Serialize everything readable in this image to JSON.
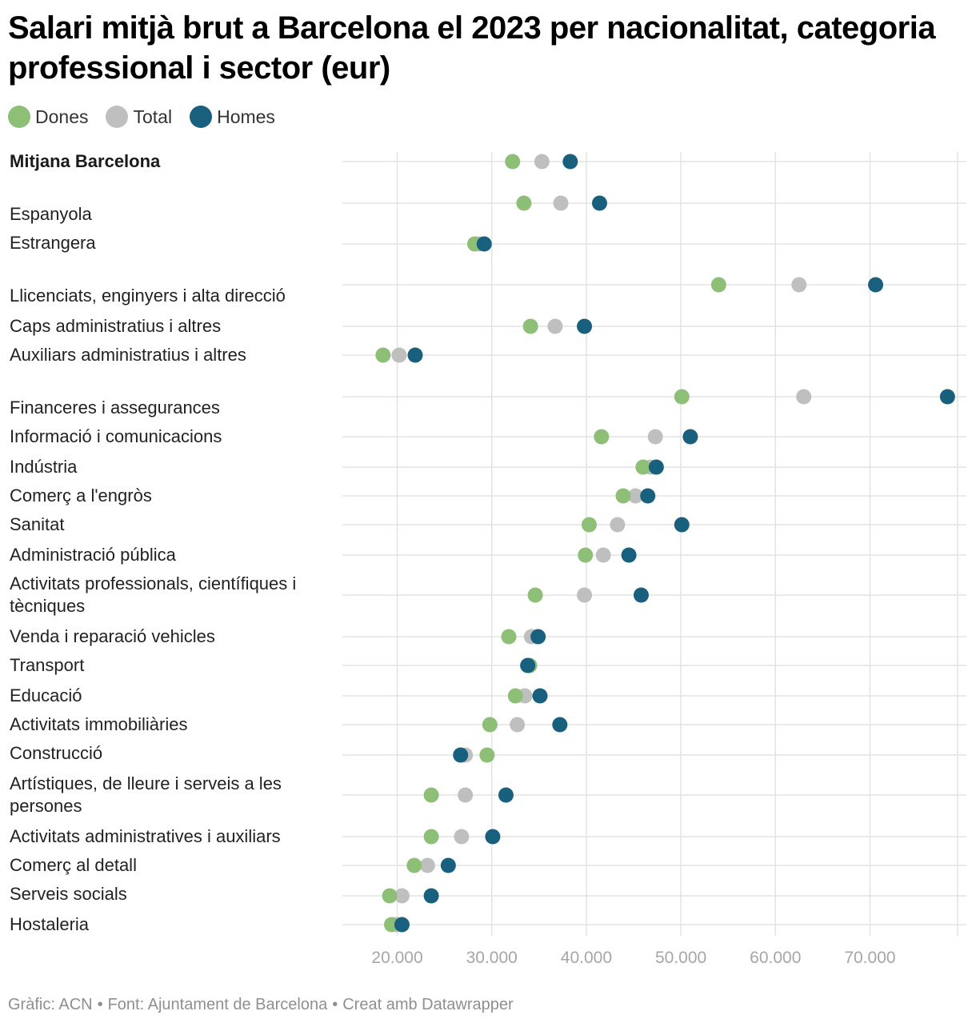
{
  "chart_data": {
    "type": "dot",
    "title": "Salari mitjà brut a Barcelona el 2023 per nacionalitat, categoria professional i sector (eur)",
    "series": [
      {
        "name": "Dones",
        "color": "#8dbf76"
      },
      {
        "name": "Total",
        "color": "#bfbfbf"
      },
      {
        "name": "Homes",
        "color": "#18607e"
      }
    ],
    "x_ticks": [
      20000,
      30000,
      40000,
      50000,
      60000,
      70000
    ],
    "x_tick_labels": [
      "20.000",
      "30.000",
      "40.000",
      "50.000",
      "60.000",
      "70.000"
    ],
    "xlim": [
      14200,
      80200
    ],
    "rows": [
      {
        "label": "Mitjana Barcelona",
        "bold": true,
        "dones": 32200,
        "total": 35300,
        "homes": 38300
      },
      {
        "label": "Espanyola",
        "dones": 33400,
        "total": 37300,
        "homes": 41400
      },
      {
        "label": "Estrangera",
        "dones": 28200,
        "total": 28700,
        "homes": 29200
      },
      {
        "label": "Llicenciats, enginyers i alta direcció",
        "dones": 54000,
        "total": 62500,
        "homes": 70600
      },
      {
        "label": "Caps administratius i altres",
        "dones": 34100,
        "total": 36700,
        "homes": 39800
      },
      {
        "label": "Auxiliars administratius i altres",
        "dones": 18500,
        "total": 20200,
        "homes": 21900
      },
      {
        "label": "Financeres i assegurances",
        "dones": 50100,
        "total": 63000,
        "homes": 78200
      },
      {
        "label": "Informació i comunicacions",
        "dones": 41600,
        "total": 47300,
        "homes": 51000
      },
      {
        "label": "Indústria",
        "dones": 46000,
        "total": 46800,
        "homes": 47400
      },
      {
        "label": "Comerç a l'engròs",
        "dones": 43900,
        "total": 45200,
        "homes": 46500
      },
      {
        "label": "Sanitat",
        "dones": 40300,
        "total": 43300,
        "homes": 50100
      },
      {
        "label": "Administració pública",
        "dones": 39900,
        "total": 41800,
        "homes": 44500
      },
      {
        "label": "Activitats professionals, científiques i tècniques",
        "dones": 34600,
        "total": 39800,
        "homes": 45800
      },
      {
        "label": "Venda i reparació vehicles",
        "dones": 31800,
        "total": 34200,
        "homes": 34900
      },
      {
        "label": "Transport",
        "dones": 34000,
        "total": 34000,
        "homes": 33800
      },
      {
        "label": "Educació",
        "dones": 32500,
        "total": 33500,
        "homes": 35100
      },
      {
        "label": "Activitats immobiliàries",
        "dones": 29800,
        "total": 32700,
        "homes": 37200
      },
      {
        "label": "Construcció",
        "dones": 29500,
        "total": 27200,
        "homes": 26700
      },
      {
        "label": "Artístiques, de lleure i serveis a les persones",
        "dones": 23600,
        "total": 27200,
        "homes": 31500
      },
      {
        "label": "Activitats administratives i auxiliars",
        "dones": 23600,
        "total": 26800,
        "homes": 30100
      },
      {
        "label": "Comerç al detall",
        "dones": 21800,
        "total": 23200,
        "homes": 25400
      },
      {
        "label": "Serveis socials",
        "dones": 19200,
        "total": 20500,
        "homes": 23600
      },
      {
        "label": "Hostaleria",
        "dones": 19400,
        "total": 19900,
        "homes": 20500
      }
    ]
  },
  "footer": {
    "graphic": "Gràfic: ACN",
    "source": "Font: Ajuntament de Barcelona",
    "credit": "Creat amb Datawrapper",
    "separator": "•"
  }
}
